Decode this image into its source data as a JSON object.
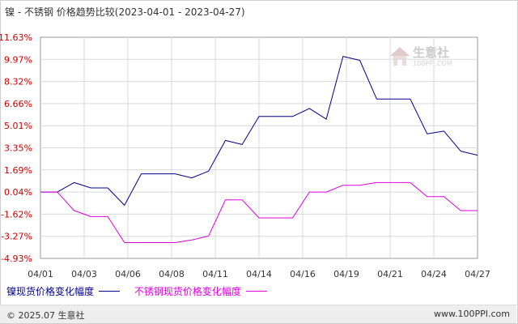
{
  "title": "镍 - 不锈钢 价格趋势比较(2023-04-01 - 2023-04-27)",
  "watermark": {
    "text": "生意社",
    "sub": "100PPI.COM"
  },
  "footer": {
    "copyright": "© 2025.07 生意社",
    "site": "www.100PPI.com"
  },
  "colors": {
    "nickel": "#00008b",
    "stainless": "#e000e0",
    "yaxis_label": "#cc0000",
    "grid": "#d8d8d8"
  },
  "chart_data": {
    "type": "line",
    "title": "镍 - 不锈钢 价格趋势比较(2023-04-01 - 2023-04-27)",
    "xlabel": "",
    "ylabel": "",
    "ylim": [
      -4.93,
      11.63
    ],
    "y_ticks": [
      "11.63%",
      "9.97%",
      "8.32%",
      "6.66%",
      "5.01%",
      "3.35%",
      "1.69%",
      "0.04%",
      "-1.62%",
      "-3.27%",
      "-4.93%"
    ],
    "x_ticks": [
      "04/01",
      "04/03",
      "04/06",
      "04/08",
      "04/11",
      "04/14",
      "04/16",
      "04/19",
      "04/21",
      "04/24",
      "04/27"
    ],
    "grid": true,
    "legend_position": "bottom",
    "x_range": [
      0,
      26
    ],
    "series": [
      {
        "name": "镍现货价格变化幅度",
        "color": "#00008b",
        "x": [
          0,
          1,
          2,
          3,
          4,
          5,
          6,
          7,
          8,
          9,
          10,
          11,
          12,
          13,
          14,
          15,
          16,
          17,
          18,
          19,
          20,
          21,
          22,
          23,
          24,
          25,
          26
        ],
        "y": [
          0.04,
          0.04,
          0.75,
          0.35,
          0.35,
          -0.95,
          1.4,
          1.4,
          1.4,
          1.1,
          1.6,
          3.9,
          3.6,
          5.7,
          5.7,
          5.7,
          6.3,
          5.5,
          10.2,
          9.9,
          7.0,
          7.0,
          7.0,
          4.4,
          4.6,
          3.1,
          2.8
        ]
      },
      {
        "name": "不锈钢现货价格变化幅度",
        "color": "#e000e0",
        "x": [
          0,
          1,
          2,
          3,
          4,
          5,
          6,
          7,
          8,
          9,
          10,
          11,
          12,
          13,
          14,
          15,
          16,
          17,
          18,
          19,
          20,
          21,
          22,
          23,
          24,
          25,
          26
        ],
        "y": [
          0.04,
          0.04,
          -1.35,
          -1.8,
          -1.8,
          -3.75,
          -3.75,
          -3.75,
          -3.75,
          -3.55,
          -3.25,
          -0.55,
          -0.55,
          -1.9,
          -1.9,
          -1.9,
          0.04,
          0.04,
          0.55,
          0.55,
          0.75,
          0.75,
          0.75,
          -0.3,
          -0.3,
          -1.35,
          -1.35
        ]
      }
    ]
  }
}
